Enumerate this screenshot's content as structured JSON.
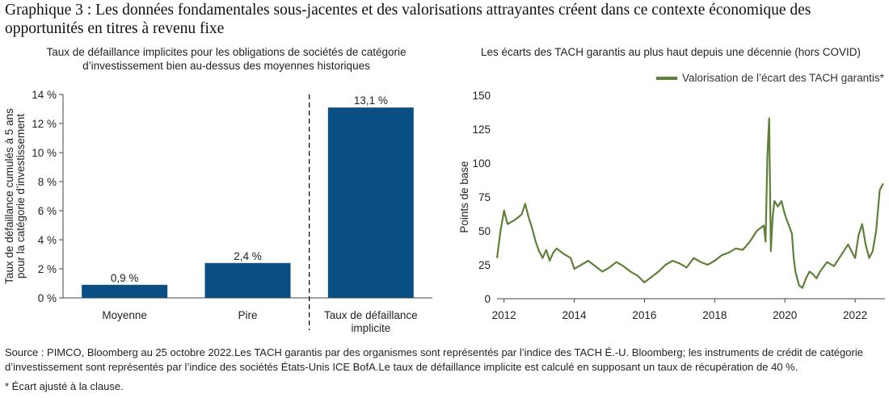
{
  "title": "Graphique 3 : Les données fondamentales sous-jacentes et des valorisations attrayantes créent dans ce contexte économique des opportunités en titres à revenu fixe",
  "source": "Source : PIMCO, Bloomberg au 25 octobre 2022.Les TACH garantis par des organismes sont représentés par l’indice des TACH É.-U. Bloomberg; les instruments de crédit de catégorie d’investissement sont représentés par l’indice des sociétés États-Unis ICE BofA.Le taux de défaillance implicite est calculé en supposant un taux de récupération de 40 %.",
  "note": "* Écart ajusté à la clause.",
  "colors": {
    "bar": "#0a4f83",
    "line": "#5f8038",
    "axis": "#444444"
  },
  "chart_data": [
    {
      "type": "bar",
      "title": "Taux de défaillance implicites pour les obligations de sociétés de catégorie d’investissement bien au-dessus des moyennes historiques",
      "ylabel": "Taux de défaillance cumulés à 5 ans pour la catégorie d’investissement",
      "categories": [
        "Moyenne",
        "Pire",
        "Taux de défaillance implicite"
      ],
      "values": [
        0.9,
        2.4,
        13.1
      ],
      "data_labels": [
        "0,9 %",
        "2,4 %",
        "13,1 %"
      ],
      "ylim": [
        0,
        14
      ],
      "yticks": [
        0,
        2,
        4,
        6,
        8,
        10,
        12,
        14
      ],
      "ytick_labels": [
        "0 %",
        "2 %",
        "4 %",
        "6 %",
        "8 %",
        "10 %",
        "12 %",
        "14 %"
      ],
      "divider_after_category": 1,
      "grid": false
    },
    {
      "type": "line",
      "title": "Les écarts des TACH garantis au plus haut depuis une décennie (hors COVID)",
      "ylabel": "Points de base",
      "legend_position": "top-right",
      "ylim": [
        0,
        150
      ],
      "yticks": [
        0,
        25,
        50,
        75,
        100,
        125,
        150
      ],
      "xlim": [
        2011.8,
        2022.85
      ],
      "xticks": [
        2012,
        2014,
        2016,
        2018,
        2020,
        2022
      ],
      "xtick_labels": [
        "2012",
        "2014",
        "2016",
        "2018",
        "2020",
        "2022"
      ],
      "grid": false,
      "series": [
        {
          "name": "Valorisation de l’écart des TACH garantis*",
          "x": [
            2011.8,
            2011.9,
            2012.0,
            2012.1,
            2012.3,
            2012.5,
            2012.6,
            2012.7,
            2012.8,
            2012.9,
            2013.0,
            2013.1,
            2013.2,
            2013.3,
            2013.4,
            2013.5,
            2013.7,
            2013.9,
            2014.0,
            2014.2,
            2014.4,
            2014.6,
            2014.8,
            2015.0,
            2015.2,
            2015.4,
            2015.6,
            2015.8,
            2016.0,
            2016.2,
            2016.4,
            2016.6,
            2016.8,
            2017.0,
            2017.2,
            2017.4,
            2017.6,
            2017.8,
            2018.0,
            2018.2,
            2018.4,
            2018.6,
            2018.8,
            2019.0,
            2019.2,
            2019.4,
            2019.45,
            2019.5,
            2019.55,
            2019.6,
            2019.65,
            2019.7,
            2019.8,
            2019.9,
            2020.0,
            2020.1,
            2020.2,
            2020.25,
            2020.3,
            2020.4,
            2020.5,
            2020.6,
            2020.7,
            2020.8,
            2020.9,
            2021.0,
            2021.2,
            2021.4,
            2021.6,
            2021.8,
            2021.9,
            2022.0,
            2022.1,
            2022.2,
            2022.3,
            2022.4,
            2022.5,
            2022.6,
            2022.7,
            2022.8
          ],
          "y": [
            30,
            50,
            65,
            55,
            58,
            62,
            70,
            60,
            52,
            42,
            35,
            30,
            36,
            28,
            34,
            37,
            33,
            30,
            22,
            25,
            28,
            24,
            20,
            23,
            27,
            24,
            20,
            17,
            12,
            16,
            20,
            25,
            28,
            26,
            23,
            30,
            27,
            25,
            28,
            32,
            34,
            37,
            36,
            42,
            50,
            54,
            42,
            105,
            133,
            35,
            60,
            72,
            68,
            72,
            62,
            55,
            48,
            30,
            20,
            10,
            8,
            15,
            20,
            18,
            15,
            20,
            27,
            24,
            32,
            40,
            35,
            30,
            47,
            55,
            40,
            30,
            35,
            50,
            80,
            85
          ]
        }
      ]
    }
  ]
}
